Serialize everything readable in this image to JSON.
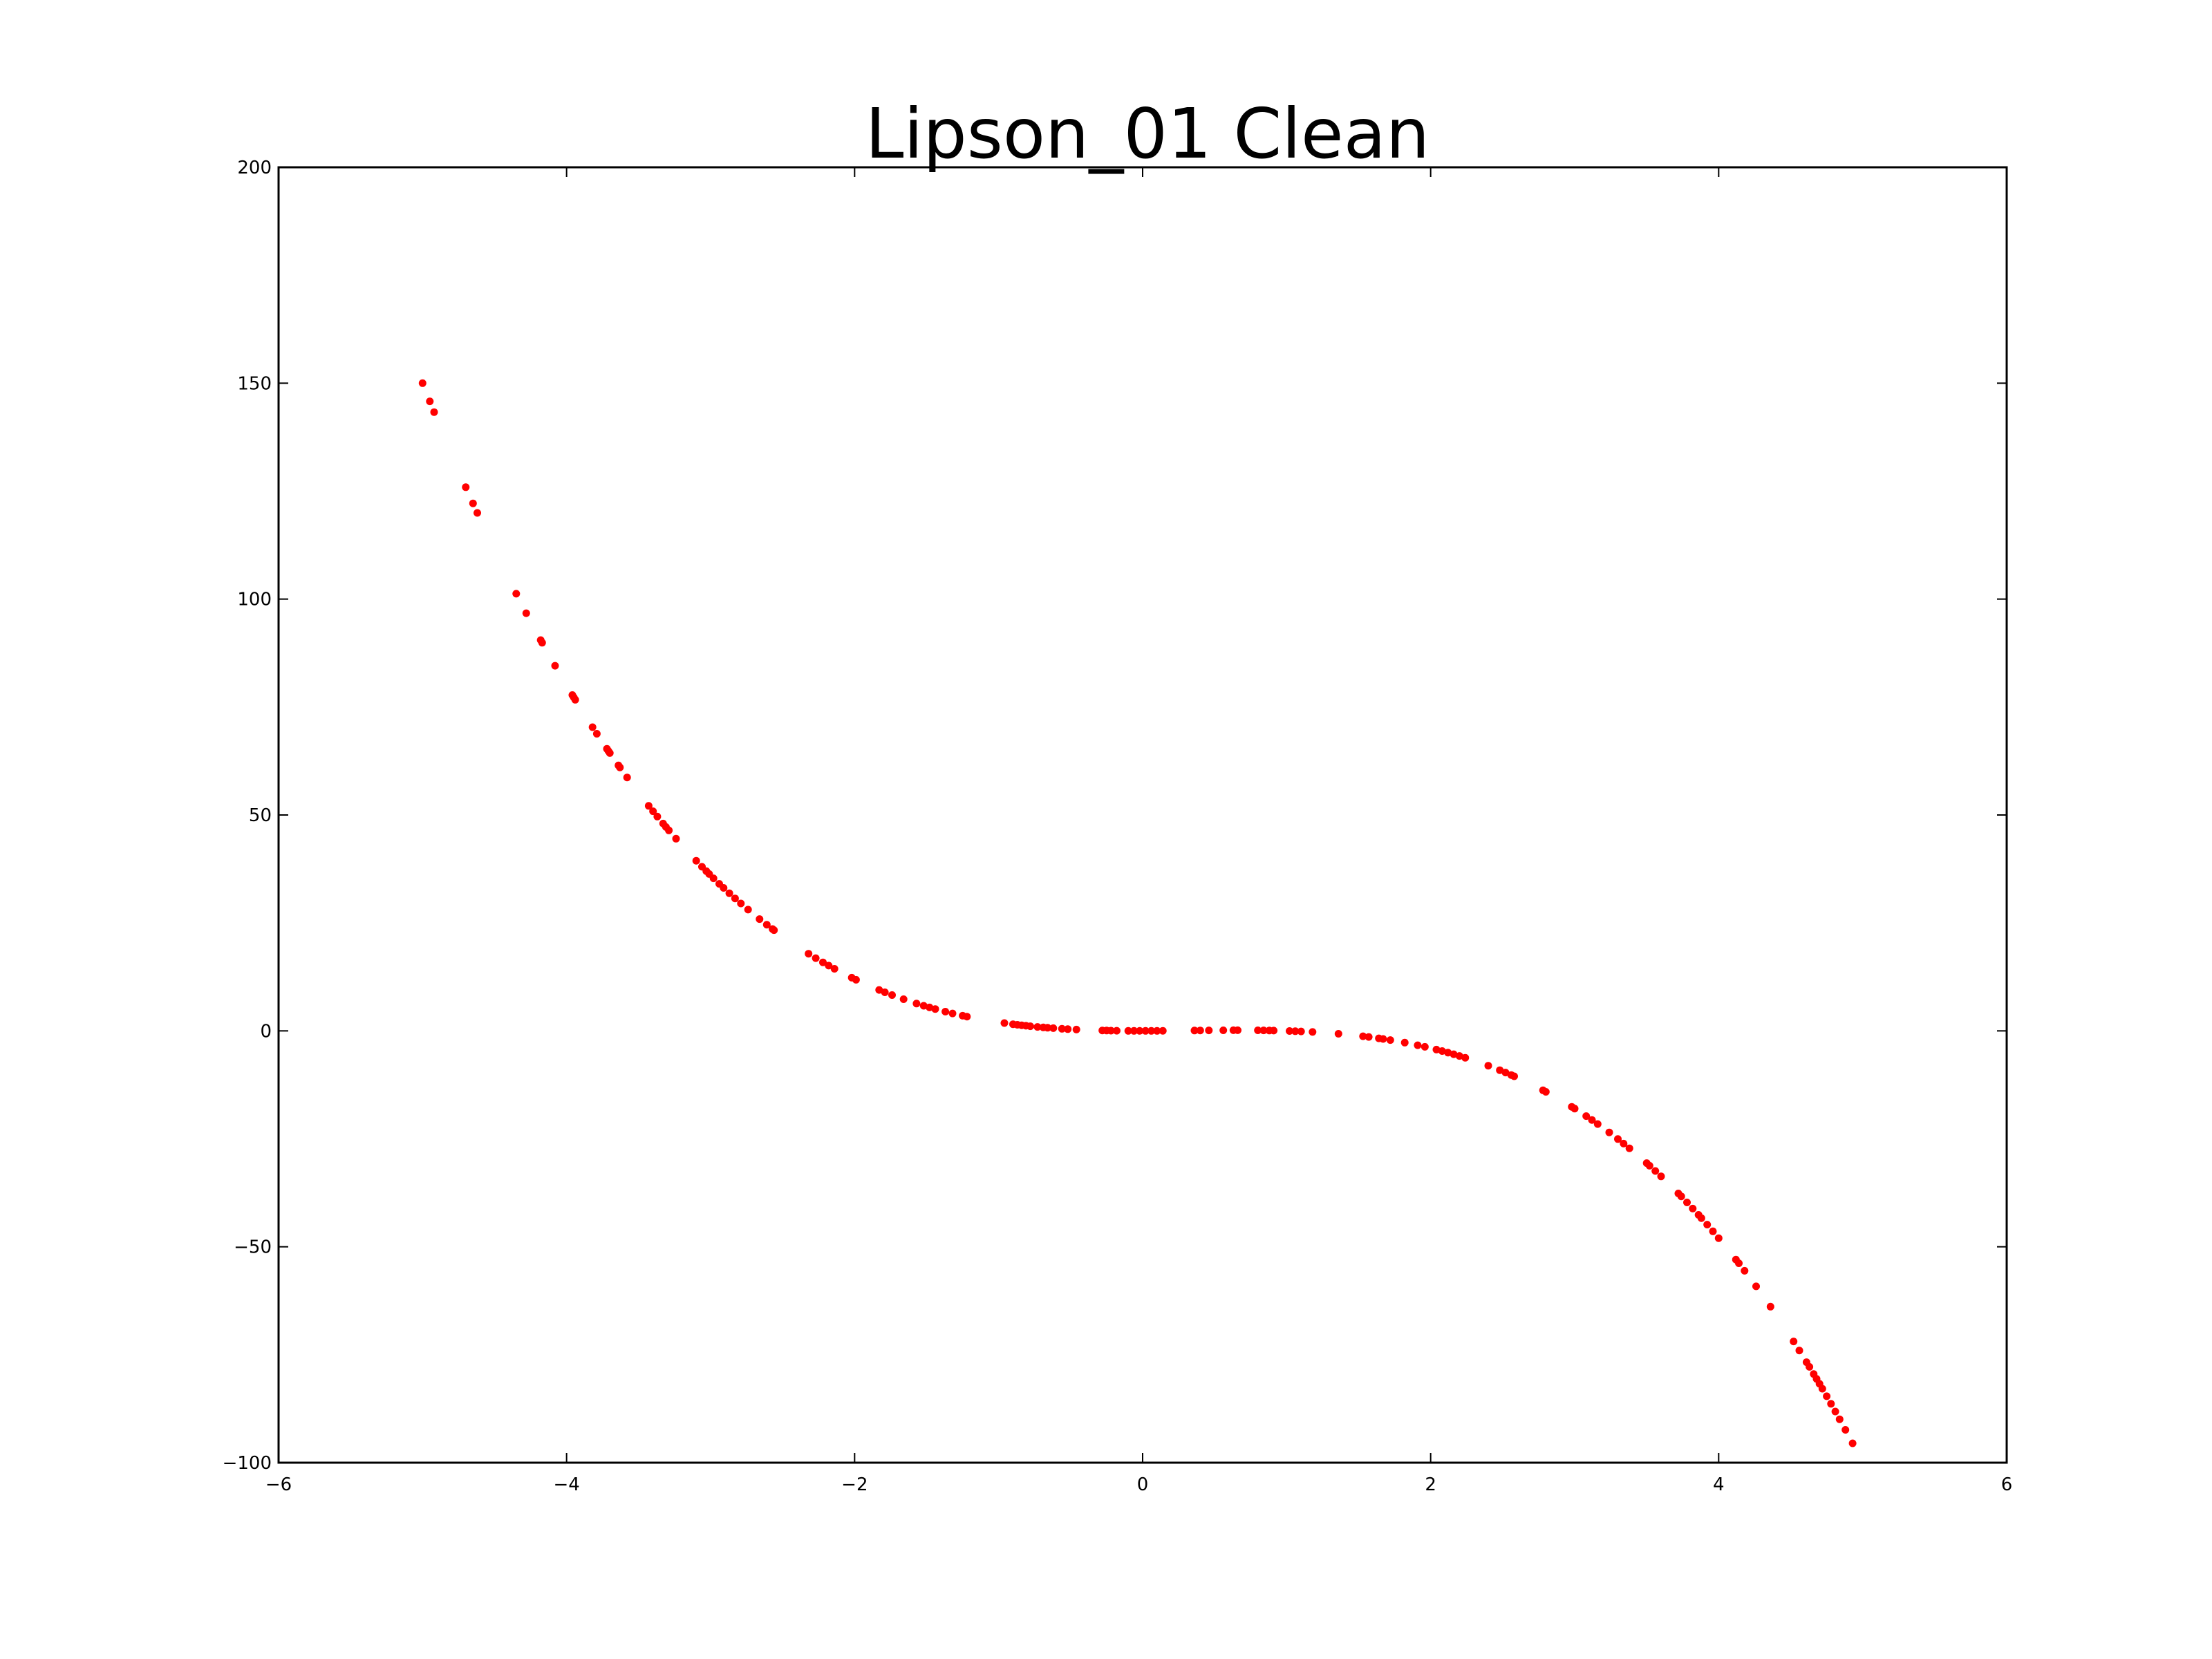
{
  "chart_data": {
    "type": "scatter",
    "title": "Lipson_01 Clean",
    "xlabel": "",
    "ylabel": "",
    "xlim": [
      -6,
      6
    ],
    "ylim": [
      -100,
      200
    ],
    "xticks": [
      "−6",
      "−4",
      "−2",
      "0",
      "2",
      "4",
      "6"
    ],
    "yticks": [
      "−100",
      "−50",
      "0",
      "50",
      "100",
      "150",
      "200"
    ],
    "grid": false,
    "marker_color": "#ff0000",
    "series": [
      {
        "x": [
          -5.0,
          -4.95,
          -4.92,
          -4.7,
          -4.65,
          -4.62,
          -4.35,
          -4.28,
          -4.18,
          -4.17,
          -4.08,
          -3.96,
          -3.95,
          -3.94,
          -3.82,
          -3.79,
          -3.72,
          -3.71,
          -3.7,
          -3.64,
          -3.63,
          -3.58,
          -3.43,
          -3.4,
          -3.37,
          -3.33,
          -3.31,
          -3.29,
          -3.24,
          -3.1,
          -3.06,
          -3.03,
          -3.01,
          -2.98,
          -2.94,
          -2.91,
          -2.87,
          -2.83,
          -2.79,
          -2.74,
          -2.66,
          -2.61,
          -2.57,
          -2.56,
          -2.32,
          -2.27,
          -2.22,
          -2.18,
          -2.14,
          -2.02,
          -1.99,
          -1.83,
          -1.79,
          -1.74,
          -1.66,
          -1.57,
          -1.52,
          -1.48,
          -1.44,
          -1.37,
          -1.32,
          -1.25,
          -1.22,
          -0.96,
          -0.9,
          -0.87,
          -0.84,
          -0.81,
          -0.78,
          -0.73,
          -0.69,
          -0.66,
          -0.62,
          -0.56,
          -0.52,
          -0.46,
          -0.28,
          -0.25,
          -0.22,
          -0.18,
          -0.1,
          -0.06,
          -0.02,
          0.02,
          0.06,
          0.1,
          0.14,
          0.36,
          0.4,
          0.46,
          0.56,
          0.63,
          0.66,
          0.8,
          0.84,
          0.88,
          0.91,
          1.02,
          1.06,
          1.1,
          1.18,
          1.36,
          1.53,
          1.57,
          1.64,
          1.67,
          1.72,
          1.82,
          1.91,
          1.96,
          2.04,
          2.08,
          2.12,
          2.16,
          2.2,
          2.24,
          2.4,
          2.48,
          2.52,
          2.56,
          2.58,
          2.78,
          2.8,
          2.98,
          3.0,
          3.08,
          3.12,
          3.16,
          3.24,
          3.3,
          3.34,
          3.38,
          3.5,
          3.52,
          3.56,
          3.6,
          3.72,
          3.74,
          3.78,
          3.82,
          3.86,
          3.88,
          3.92,
          3.96,
          4.0,
          4.12,
          4.14,
          4.18,
          4.26,
          4.36,
          4.52,
          4.56,
          4.61,
          4.63,
          4.66,
          4.68,
          4.7,
          4.72,
          4.75,
          4.78,
          4.81,
          4.84,
          4.88,
          4.93
        ]
      }
    ]
  }
}
